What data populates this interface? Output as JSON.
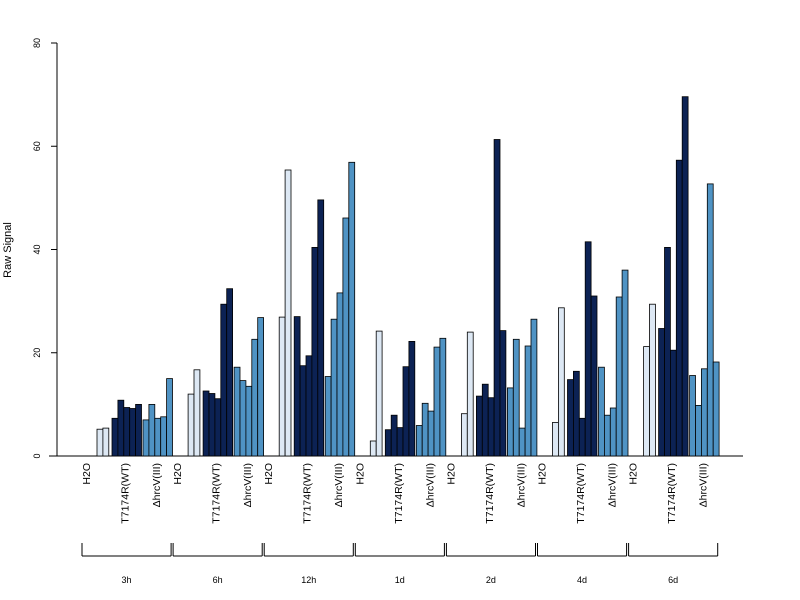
{
  "chart_data": {
    "type": "bar",
    "title": "",
    "xlabel": "",
    "ylabel": "Raw Signal",
    "ylim": [
      0,
      80
    ],
    "yticks": [
      0,
      20,
      40,
      60,
      80
    ],
    "grid": false,
    "legend": "none",
    "colors": {
      "H2O": "#dde8f4",
      "T7174R(WT)": "#0c2254",
      "ΔhrcV(III)": "#4f93c4"
    },
    "timepoints": [
      {
        "label": "3h",
        "groups": [
          {
            "label": "H2O",
            "values": [
              5.2,
              5.4
            ]
          },
          {
            "label": "T7174R(WT)",
            "values": [
              7.3,
              10.8,
              9.4,
              9.2,
              10.0
            ]
          },
          {
            "label": "ΔhrcV(III)",
            "values": [
              7.0,
              10.0,
              7.3,
              7.6,
              15.0
            ]
          }
        ]
      },
      {
        "label": "6h",
        "groups": [
          {
            "label": "H2O",
            "values": [
              12.0,
              16.7
            ]
          },
          {
            "label": "T7174R(WT)",
            "values": [
              12.6,
              12.1,
              11.1,
              29.4,
              32.4
            ]
          },
          {
            "label": "ΔhrcV(III)",
            "values": [
              17.2,
              14.6,
              13.5,
              22.6,
              26.8
            ]
          }
        ]
      },
      {
        "label": "12h",
        "groups": [
          {
            "label": "H2O",
            "values": [
              26.9,
              55.4
            ]
          },
          {
            "label": "T7174R(WT)",
            "values": [
              27.0,
              17.5,
              19.4,
              40.4,
              49.6
            ]
          },
          {
            "label": "ΔhrcV(III)",
            "values": [
              15.4,
              26.5,
              31.6,
              46.1,
              56.9
            ]
          }
        ]
      },
      {
        "label": "1d",
        "groups": [
          {
            "label": "H2O",
            "values": [
              2.9,
              24.2
            ]
          },
          {
            "label": "T7174R(WT)",
            "values": [
              5.1,
              7.9,
              5.5,
              17.3,
              22.2
            ]
          },
          {
            "label": "ΔhrcV(III)",
            "values": [
              5.9,
              10.2,
              8.7,
              21.1,
              22.8
            ]
          }
        ]
      },
      {
        "label": "2d",
        "groups": [
          {
            "label": "H2O",
            "values": [
              8.2,
              24.0
            ]
          },
          {
            "label": "T7174R(WT)",
            "values": [
              11.6,
              13.9,
              11.3,
              61.3,
              24.3
            ]
          },
          {
            "label": "ΔhrcV(III)",
            "values": [
              13.2,
              22.6,
              5.4,
              21.3,
              26.5
            ]
          }
        ]
      },
      {
        "label": "4d",
        "groups": [
          {
            "label": "H2O",
            "values": [
              6.5,
              28.7
            ]
          },
          {
            "label": "T7174R(WT)",
            "values": [
              14.8,
              16.4,
              7.3,
              41.5,
              31.0
            ]
          },
          {
            "label": "ΔhrcV(III)",
            "values": [
              17.2,
              7.9,
              9.3,
              30.8,
              36.0
            ]
          }
        ]
      },
      {
        "label": "6d",
        "groups": [
          {
            "label": "H2O",
            "values": [
              21.2,
              29.4
            ]
          },
          {
            "label": "T7174R(WT)",
            "values": [
              24.7,
              40.4,
              20.5,
              57.3,
              69.6
            ]
          },
          {
            "label": "ΔhrcV(III)",
            "values": [
              15.6,
              9.8,
              16.9,
              52.7,
              18.2
            ]
          }
        ]
      }
    ]
  }
}
